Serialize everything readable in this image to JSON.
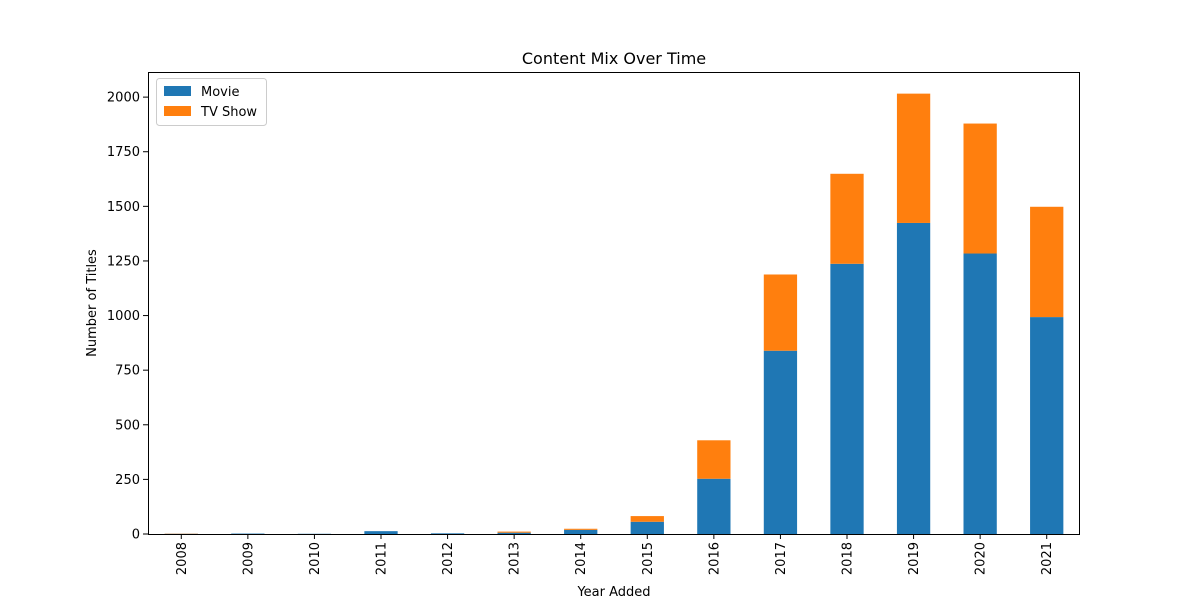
{
  "chart_data": {
    "type": "bar",
    "stacked": true,
    "title": "Content Mix Over Time",
    "xlabel": "Year Added",
    "ylabel": "Number of Titles",
    "categories": [
      "2008",
      "2009",
      "2010",
      "2011",
      "2012",
      "2013",
      "2014",
      "2015",
      "2016",
      "2017",
      "2018",
      "2019",
      "2020",
      "2021"
    ],
    "series": [
      {
        "name": "Movie",
        "color": "#1f77b4",
        "values": [
          1,
          2,
          1,
          13,
          3,
          6,
          19,
          56,
          253,
          839,
          1237,
          1424,
          1284,
          993
        ]
      },
      {
        "name": "TV Show",
        "color": "#ff7f0e",
        "values": [
          1,
          0,
          0,
          0,
          0,
          5,
          5,
          26,
          176,
          349,
          412,
          592,
          595,
          505
        ]
      }
    ],
    "ylim": [
      0,
      2115
    ],
    "yticks": [
      0,
      250,
      500,
      750,
      1000,
      1250,
      1500,
      1750,
      2000
    ],
    "grid": false,
    "legend": "top-left"
  }
}
